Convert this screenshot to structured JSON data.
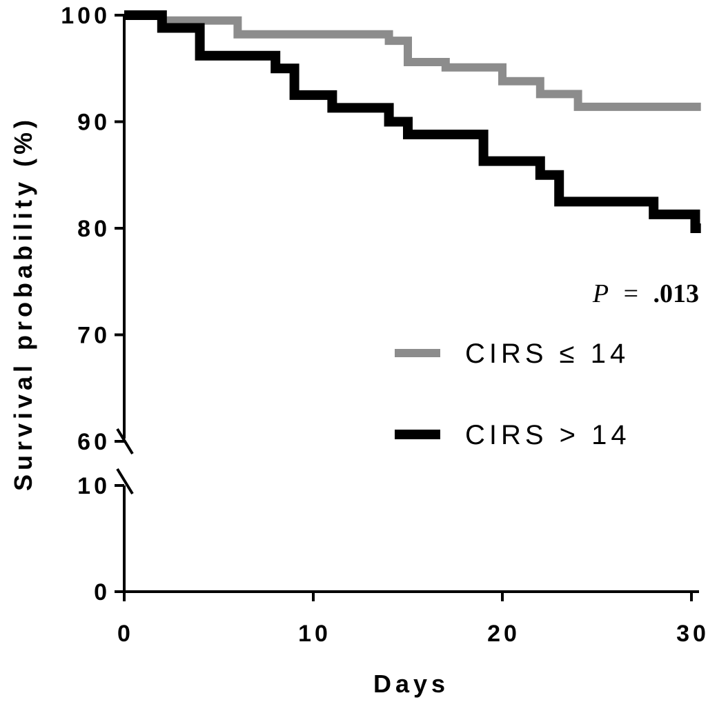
{
  "chart_data": {
    "type": "line",
    "step": true,
    "xlabel": "Days",
    "ylabel": "Survival probability (%)",
    "xlim": [
      0,
      30.5
    ],
    "x_ticks": [
      0,
      10,
      20,
      30
    ],
    "x_tick_labels": [
      "0",
      "10",
      "20",
      "30"
    ],
    "y_axis_broken": true,
    "y_segments": [
      {
        "range": [
          0,
          10
        ],
        "ticks": [
          0,
          10
        ],
        "tick_labels": [
          "0",
          "10"
        ]
      },
      {
        "range": [
          60,
          100
        ],
        "ticks": [
          60,
          70,
          80,
          90,
          100
        ],
        "tick_labels": [
          "60",
          "70",
          "80",
          "90",
          "100"
        ]
      }
    ],
    "grid": false,
    "legend_position": "right",
    "annotation": {
      "p_label": "P",
      "p_equals": "=",
      "p_value": ".013"
    },
    "series": [
      {
        "name": "CIRS ≤ 14",
        "color": "#8c8c8c",
        "steps": [
          {
            "x": 0,
            "y": 100
          },
          {
            "x": 2,
            "y": 99.5
          },
          {
            "x": 6,
            "y": 98.2
          },
          {
            "x": 14,
            "y": 97.6
          },
          {
            "x": 15,
            "y": 95.6
          },
          {
            "x": 17,
            "y": 95.1
          },
          {
            "x": 20,
            "y": 93.8
          },
          {
            "x": 22,
            "y": 92.6
          },
          {
            "x": 24,
            "y": 91.4
          },
          {
            "x": 30.5,
            "y": 91.4
          }
        ]
      },
      {
        "name": "CIRS > 14",
        "color": "#000000",
        "steps": [
          {
            "x": 0,
            "y": 100
          },
          {
            "x": 2,
            "y": 98.8
          },
          {
            "x": 4,
            "y": 96.2
          },
          {
            "x": 8,
            "y": 95.0
          },
          {
            "x": 9,
            "y": 92.5
          },
          {
            "x": 11,
            "y": 91.3
          },
          {
            "x": 14,
            "y": 90.0
          },
          {
            "x": 15,
            "y": 88.8
          },
          {
            "x": 19,
            "y": 86.3
          },
          {
            "x": 22,
            "y": 85.0
          },
          {
            "x": 23,
            "y": 82.5
          },
          {
            "x": 28,
            "y": 81.3
          },
          {
            "x": 30.2,
            "y": 80.0
          },
          {
            "x": 30.5,
            "y": 80.0
          }
        ]
      }
    ]
  }
}
